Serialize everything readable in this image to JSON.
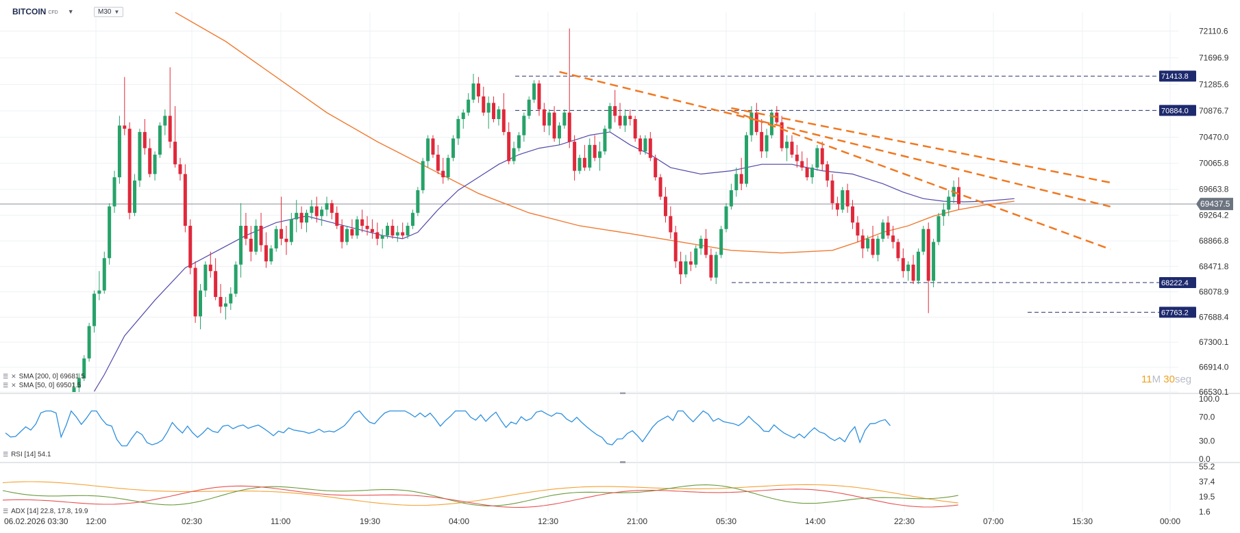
{
  "instrument": {
    "symbol": "BITCOIN",
    "type": "CFD",
    "timeframe": "M30"
  },
  "indicators": {
    "sma200": "SMA [200, 0] 69681.5",
    "sma50": "SMA [50, 0] 69501.5",
    "rsi": "RSI [14] 54.1",
    "adx": "ADX [14] 22.8, 17.8, 19.9"
  },
  "countdown": {
    "minutes": "11",
    "m_unit": "M",
    "seconds": "30",
    "s_unit": "seg"
  },
  "colors": {
    "bull": "#26a269",
    "bear": "#e0283a",
    "sma200": "#f07a30",
    "sma50": "#5048a8",
    "trend": "#f07820",
    "level": "#28306a",
    "level_tag": "#1e2a6e",
    "rsi": "#2b8fe0",
    "adx": "#f4a030",
    "di_plus": "#6a9a3a",
    "di_minus": "#e85050",
    "price_tag": "#6c7480"
  },
  "chart_data": {
    "type": "candlestick",
    "x_ticks": [
      "06.02.2026  03:30",
      "12:00",
      "02:30",
      "11:00",
      "19:30",
      "04:00",
      "12:30",
      "21:00",
      "05:30",
      "14:00",
      "22:30",
      "07:00",
      "15:30",
      "00:00"
    ],
    "y_ticks": [
      "72110.6",
      "71696.9",
      "71285.6",
      "70876.7",
      "70470.0",
      "70065.8",
      "69663.8",
      "69264.2",
      "68866.8",
      "68471.8",
      "68078.9",
      "67688.4",
      "67300.1",
      "66914.0",
      "66530.1"
    ],
    "ylim": [
      66530.1,
      72400
    ],
    "current_price": 69437.5,
    "levels": [
      71413.8,
      70884.0,
      68222.4,
      67763.2
    ],
    "candles": [
      [
        66480,
        66680,
        66380,
        66600
      ],
      [
        66600,
        66820,
        66520,
        66740
      ],
      [
        66740,
        67100,
        66700,
        67050
      ],
      [
        67050,
        67600,
        67000,
        67550
      ],
      [
        67550,
        68100,
        67450,
        68050
      ],
      [
        68050,
        68400,
        67950,
        68100
      ],
      [
        68100,
        68700,
        68050,
        68600
      ],
      [
        68600,
        69450,
        68500,
        69400
      ],
      [
        69400,
        69950,
        69300,
        69850
      ],
      [
        69850,
        70800,
        69750,
        70650
      ],
      [
        70650,
        71400,
        70500,
        70600
      ],
      [
        70600,
        70700,
        69200,
        69300
      ],
      [
        69300,
        69900,
        69250,
        69800
      ],
      [
        69800,
        70600,
        69700,
        70550
      ],
      [
        70550,
        70750,
        70200,
        70300
      ],
      [
        70300,
        70450,
        69850,
        69900
      ],
      [
        69900,
        70250,
        69800,
        70200
      ],
      [
        70200,
        70700,
        70150,
        70650
      ],
      [
        70650,
        70900,
        70500,
        70800
      ],
      [
        70800,
        71550,
        70300,
        70400
      ],
      [
        70400,
        70950,
        70000,
        70050
      ],
      [
        70050,
        70150,
        69800,
        69900
      ],
      [
        69900,
        70050,
        69000,
        69100
      ],
      [
        69100,
        69200,
        68350,
        68450
      ],
      [
        68450,
        68550,
        67600,
        67700
      ],
      [
        67700,
        68200,
        67500,
        68100
      ],
      [
        68100,
        68550,
        68000,
        68500
      ],
      [
        68500,
        68700,
        68300,
        68400
      ],
      [
        68400,
        68600,
        67950,
        68000
      ],
      [
        68000,
        68200,
        67750,
        67850
      ],
      [
        67850,
        68000,
        67650,
        67900
      ],
      [
        67900,
        68150,
        67800,
        68050
      ],
      [
        68050,
        68550,
        68000,
        68500
      ],
      [
        68500,
        69450,
        68300,
        69100
      ],
      [
        69100,
        69300,
        68800,
        68900
      ],
      [
        68900,
        69100,
        68550,
        68700
      ],
      [
        68700,
        69200,
        68650,
        69100
      ],
      [
        69100,
        69300,
        68700,
        68800
      ],
      [
        68800,
        69000,
        68450,
        68550
      ],
      [
        68550,
        68800,
        68500,
        68750
      ],
      [
        68750,
        69100,
        68700,
        69050
      ],
      [
        69050,
        69550,
        68800,
        68900
      ],
      [
        68900,
        69100,
        68650,
        68850
      ],
      [
        68850,
        69300,
        68800,
        69200
      ],
      [
        69200,
        69500,
        69000,
        69300
      ],
      [
        69300,
        69400,
        69050,
        69150
      ],
      [
        69150,
        69350,
        69000,
        69300
      ],
      [
        69300,
        69500,
        69200,
        69400
      ],
      [
        69400,
        69550,
        69150,
        69250
      ],
      [
        69250,
        69400,
        69100,
        69350
      ],
      [
        69350,
        69550,
        69250,
        69450
      ],
      [
        69450,
        69500,
        69200,
        69300
      ],
      [
        69300,
        69400,
        69050,
        69100
      ],
      [
        69100,
        69200,
        68750,
        68850
      ],
      [
        68850,
        69100,
        68800,
        69050
      ],
      [
        69050,
        69200,
        68900,
        68950
      ],
      [
        68950,
        69250,
        68900,
        69200
      ],
      [
        69200,
        69350,
        69000,
        69100
      ],
      [
        69100,
        69250,
        68950,
        69050
      ],
      [
        69050,
        69200,
        68900,
        69000
      ],
      [
        69000,
        69150,
        68800,
        68900
      ],
      [
        68900,
        69050,
        68750,
        68950
      ],
      [
        68950,
        69150,
        68900,
        69100
      ],
      [
        69100,
        69200,
        68900,
        68950
      ],
      [
        68950,
        69100,
        68850,
        69000
      ],
      [
        69000,
        69150,
        68900,
        68950
      ],
      [
        68950,
        69150,
        68900,
        69100
      ],
      [
        69100,
        69350,
        69050,
        69300
      ],
      [
        69300,
        69700,
        69250,
        69650
      ],
      [
        69650,
        70150,
        69600,
        70100
      ],
      [
        70100,
        70500,
        70000,
        70450
      ],
      [
        70450,
        70500,
        70150,
        70200
      ],
      [
        70200,
        70350,
        69900,
        69950
      ],
      [
        69950,
        70150,
        69750,
        69850
      ],
      [
        69850,
        70200,
        69800,
        70150
      ],
      [
        70150,
        70500,
        70100,
        70450
      ],
      [
        70450,
        70800,
        70350,
        70750
      ],
      [
        70750,
        70900,
        70600,
        70850
      ],
      [
        70850,
        71150,
        70800,
        71050
      ],
      [
        71050,
        71450,
        71000,
        71300
      ],
      [
        71300,
        71400,
        71000,
        71100
      ],
      [
        71100,
        71250,
        70800,
        70850
      ],
      [
        70850,
        71100,
        70600,
        71000
      ],
      [
        71000,
        71100,
        70700,
        70750
      ],
      [
        70750,
        70950,
        70650,
        70900
      ],
      [
        70900,
        71150,
        70500,
        70550
      ],
      [
        70550,
        70700,
        70050,
        70100
      ],
      [
        70100,
        70400,
        70050,
        70300
      ],
      [
        70300,
        70550,
        70250,
        70500
      ],
      [
        70500,
        70850,
        70400,
        70800
      ],
      [
        70800,
        71100,
        70750,
        71050
      ],
      [
        71050,
        71350,
        71000,
        71300
      ],
      [
        71300,
        71350,
        70800,
        70900
      ],
      [
        70900,
        71000,
        70550,
        70650
      ],
      [
        70650,
        70900,
        70500,
        70850
      ],
      [
        70850,
        70950,
        70400,
        70450
      ],
      [
        70450,
        70700,
        70350,
        70650
      ],
      [
        70650,
        70900,
        70600,
        70850
      ],
      [
        70850,
        72150,
        70300,
        70400
      ],
      [
        70400,
        70500,
        69800,
        69950
      ],
      [
        69950,
        70200,
        69900,
        70150
      ],
      [
        70150,
        70350,
        69950,
        70000
      ],
      [
        70000,
        70450,
        69950,
        70350
      ],
      [
        70350,
        70500,
        70100,
        70150
      ],
      [
        70150,
        70400,
        69950,
        70250
      ],
      [
        70250,
        70650,
        70200,
        70600
      ],
      [
        70600,
        71000,
        70550,
        70950
      ],
      [
        70950,
        71200,
        70700,
        70800
      ],
      [
        70800,
        71000,
        70600,
        70650
      ],
      [
        70650,
        70900,
        70550,
        70800
      ],
      [
        70800,
        70900,
        70650,
        70750
      ],
      [
        70750,
        70800,
        70400,
        70450
      ],
      [
        70450,
        70500,
        70200,
        70250
      ],
      [
        70250,
        70500,
        70200,
        70450
      ],
      [
        70450,
        70550,
        70100,
        70150
      ],
      [
        70150,
        70200,
        69800,
        69850
      ],
      [
        69850,
        69900,
        69500,
        69550
      ],
      [
        69550,
        69700,
        69150,
        69250
      ],
      [
        69250,
        69400,
        68900,
        69000
      ],
      [
        69000,
        69100,
        68450,
        68550
      ],
      [
        68550,
        68700,
        68200,
        68350
      ],
      [
        68350,
        68650,
        68300,
        68550
      ],
      [
        68550,
        68700,
        68400,
        68500
      ],
      [
        68500,
        68800,
        68450,
        68750
      ],
      [
        68750,
        68950,
        68650,
        68900
      ],
      [
        68900,
        69050,
        68600,
        68650
      ],
      [
        68650,
        68750,
        68250,
        68300
      ],
      [
        68300,
        68700,
        68200,
        68650
      ],
      [
        68650,
        69100,
        68600,
        69050
      ],
      [
        69050,
        69450,
        69000,
        69400
      ],
      [
        69400,
        69750,
        69350,
        69650
      ],
      [
        69650,
        70000,
        69550,
        69900
      ],
      [
        69900,
        70150,
        69650,
        69750
      ],
      [
        69750,
        70550,
        69700,
        70500
      ],
      [
        70500,
        70950,
        70400,
        70850
      ],
      [
        70850,
        71000,
        70500,
        70550
      ],
      [
        70550,
        70750,
        70150,
        70250
      ],
      [
        70250,
        70600,
        70150,
        70500
      ],
      [
        70500,
        70900,
        70450,
        70850
      ],
      [
        70850,
        70950,
        70650,
        70700
      ],
      [
        70700,
        70800,
        70250,
        70300
      ],
      [
        70300,
        70500,
        70100,
        70400
      ],
      [
        70400,
        70500,
        70150,
        70200
      ],
      [
        70200,
        70350,
        70000,
        70100
      ],
      [
        70100,
        70250,
        69950,
        70000
      ],
      [
        70000,
        70150,
        69800,
        69850
      ],
      [
        69850,
        70050,
        69750,
        70000
      ],
      [
        70000,
        70350,
        69950,
        70300
      ],
      [
        70300,
        70400,
        69950,
        70050
      ],
      [
        70050,
        70100,
        69700,
        69800
      ],
      [
        69800,
        69900,
        69350,
        69450
      ],
      [
        69450,
        69550,
        69250,
        69350
      ],
      [
        69350,
        69700,
        69300,
        69650
      ],
      [
        69650,
        69750,
        69300,
        69400
      ],
      [
        69400,
        69500,
        69050,
        69150
      ],
      [
        69150,
        69250,
        68850,
        68950
      ],
      [
        68950,
        69050,
        68600,
        68750
      ],
      [
        68750,
        68950,
        68700,
        68900
      ],
      [
        68900,
        69100,
        68600,
        68650
      ],
      [
        68650,
        68950,
        68550,
        68900
      ],
      [
        68900,
        69200,
        68850,
        69150
      ],
      [
        69150,
        69250,
        68900,
        68950
      ],
      [
        68950,
        69100,
        68750,
        68850
      ],
      [
        68850,
        68900,
        68550,
        68600
      ],
      [
        68600,
        68750,
        68300,
        68400
      ],
      [
        68400,
        68550,
        68250,
        68500
      ],
      [
        68500,
        68650,
        68200,
        68250
      ],
      [
        68250,
        68750,
        68200,
        68700
      ],
      [
        68700,
        69100,
        68650,
        69050
      ],
      [
        69050,
        69150,
        67750,
        68250
      ],
      [
        68250,
        68900,
        68150,
        68850
      ],
      [
        68850,
        69300,
        68800,
        69250
      ],
      [
        69250,
        69450,
        69100,
        69350
      ],
      [
        69350,
        69650,
        69250,
        69550
      ],
      [
        69550,
        69800,
        69450,
        69700
      ],
      [
        69700,
        69850,
        69350,
        69437.5
      ]
    ],
    "sma50_pts": [
      [
        4,
        66540
      ],
      [
        6,
        66800
      ],
      [
        10,
        67400
      ],
      [
        16,
        67950
      ],
      [
        22,
        68450
      ],
      [
        28,
        68700
      ],
      [
        34,
        68950
      ],
      [
        40,
        69150
      ],
      [
        46,
        69250
      ],
      [
        51,
        69150
      ],
      [
        56,
        69050
      ],
      [
        61,
        68950
      ],
      [
        65,
        68900
      ],
      [
        68,
        69000
      ],
      [
        72,
        69350
      ],
      [
        76,
        69650
      ],
      [
        80,
        69850
      ],
      [
        84,
        70050
      ],
      [
        88,
        70200
      ],
      [
        92,
        70300
      ],
      [
        96,
        70350
      ],
      [
        100,
        70450
      ],
      [
        102,
        70500
      ],
      [
        106,
        70550
      ],
      [
        110,
        70350
      ],
      [
        114,
        70200
      ],
      [
        118,
        70000
      ],
      [
        124,
        69900
      ],
      [
        130,
        69950
      ],
      [
        136,
        70050
      ],
      [
        142,
        70050
      ],
      [
        148,
        69950
      ],
      [
        154,
        69900
      ],
      [
        160,
        69750
      ],
      [
        164,
        69620
      ],
      [
        168,
        69520
      ],
      [
        172,
        69480
      ],
      [
        176,
        69470
      ],
      [
        180,
        69480
      ],
      [
        186,
        69520
      ]
    ],
    "sma200_pts": [
      [
        20,
        72400
      ],
      [
        30,
        71950
      ],
      [
        40,
        71400
      ],
      [
        50,
        70850
      ],
      [
        60,
        70400
      ],
      [
        70,
        70000
      ],
      [
        75,
        69800
      ],
      [
        80,
        69600
      ],
      [
        90,
        69300
      ],
      [
        100,
        69100
      ],
      [
        110,
        68980
      ],
      [
        120,
        68850
      ],
      [
        130,
        68720
      ],
      [
        140,
        68680
      ],
      [
        150,
        68720
      ],
      [
        155,
        68850
      ],
      [
        160,
        69000
      ],
      [
        165,
        69100
      ],
      [
        170,
        69250
      ],
      [
        175,
        69350
      ],
      [
        180,
        69420
      ],
      [
        186,
        69480
      ]
    ],
    "trendlines": [
      [
        [
          96,
          71480
        ],
        [
          186,
          69760
        ]
      ],
      [
        [
          130,
          70920
        ],
        [
          186,
          70060
        ]
      ],
      [
        [
          130,
          70880
        ],
        [
          186,
          69280
        ]
      ]
    ],
    "rsi": {
      "ticks": [
        "100.0",
        "70.0",
        "30.0",
        "0.0"
      ],
      "ylim": [
        0,
        100
      ]
    },
    "adx": {
      "ticks": [
        "55.2",
        "37.4",
        "19.5",
        "1.6"
      ],
      "ylim": [
        1.6,
        55.2
      ]
    }
  }
}
